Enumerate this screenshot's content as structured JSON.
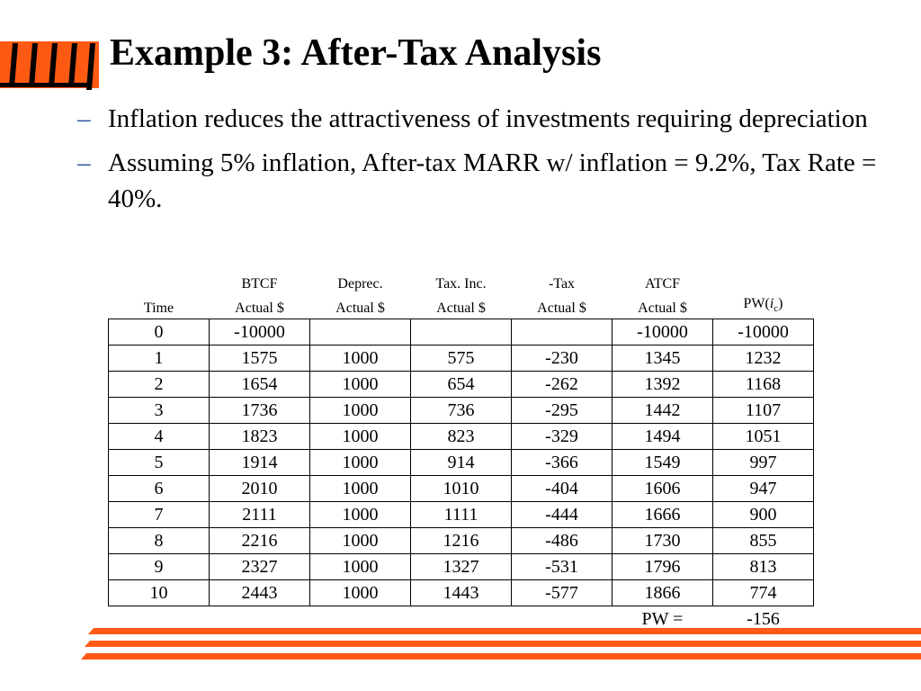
{
  "slide": {
    "title": "Example 3: After-Tax Analysis",
    "bullets": [
      "Inflation reduces the attractiveness of investments requiring depreciation",
      "Assuming 5% inflation, After-tax MARR w/ inflation = 9.2%, Tax Rate = 40%."
    ],
    "bullet_marker": "–"
  },
  "table": {
    "header_top": [
      "",
      "BTCF",
      "Deprec.",
      "Tax. Inc.",
      "-Tax",
      "ATCF",
      ""
    ],
    "header_bottom": [
      "Time",
      "Actual $",
      "Actual $",
      "Actual $",
      "Actual $",
      "Actual $",
      ""
    ],
    "pw_label": "PW(",
    "pw_var": "i",
    "pw_sub": "c",
    "pw_close": ")",
    "rows": [
      [
        "0",
        "-10000",
        "",
        "",
        "",
        "-10000",
        "-10000"
      ],
      [
        "1",
        "1575",
        "1000",
        "575",
        "-230",
        "1345",
        "1232"
      ],
      [
        "2",
        "1654",
        "1000",
        "654",
        "-262",
        "1392",
        "1168"
      ],
      [
        "3",
        "1736",
        "1000",
        "736",
        "-295",
        "1442",
        "1107"
      ],
      [
        "4",
        "1823",
        "1000",
        "823",
        "-329",
        "1494",
        "1051"
      ],
      [
        "5",
        "1914",
        "1000",
        "914",
        "-366",
        "1549",
        "997"
      ],
      [
        "6",
        "2010",
        "1000",
        "1010",
        "-404",
        "1606",
        "947"
      ],
      [
        "7",
        "2111",
        "1000",
        "1111",
        "-444",
        "1666",
        "900"
      ],
      [
        "8",
        "2216",
        "1000",
        "1216",
        "-486",
        "1730",
        "855"
      ],
      [
        "9",
        "2327",
        "1000",
        "1327",
        "-531",
        "1796",
        "813"
      ],
      [
        "10",
        "2443",
        "1000",
        "1443",
        "-577",
        "1866",
        "774"
      ]
    ],
    "total_label": "PW =",
    "total_value": "-156"
  },
  "colors": {
    "accent_orange": "#ff5a14",
    "bullet_dash": "#2d4fa0",
    "text": "#000000"
  }
}
